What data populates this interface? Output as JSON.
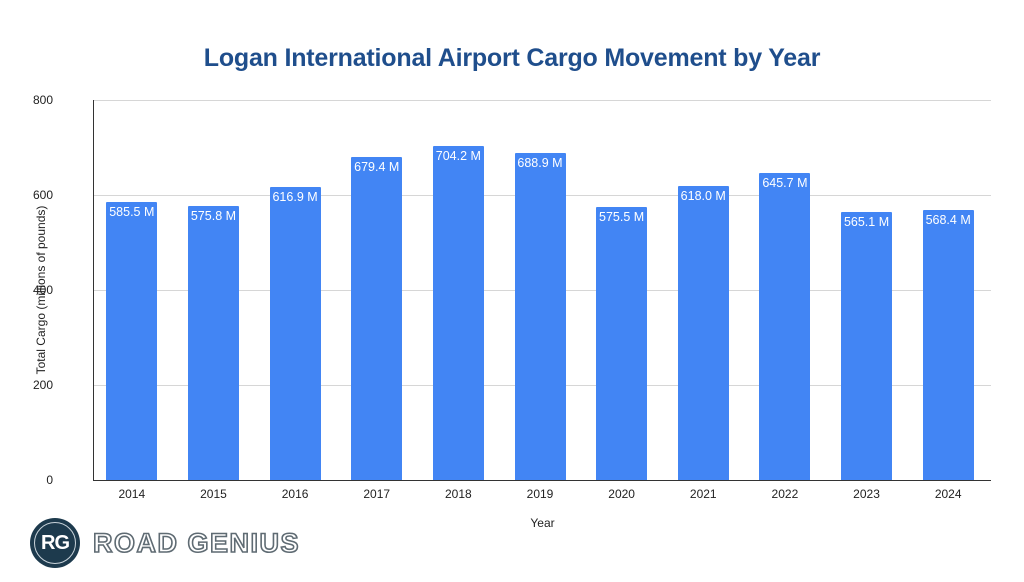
{
  "chart_data": {
    "type": "bar",
    "title": "Logan International Airport Cargo Movement by Year",
    "xlabel": "Year",
    "ylabel": "Total Cargo (millions of pounds)",
    "categories": [
      "2014",
      "2015",
      "2016",
      "2017",
      "2018",
      "2019",
      "2020",
      "2021",
      "2022",
      "2023",
      "2024"
    ],
    "values": [
      585.5,
      575.8,
      616.9,
      679.4,
      704.2,
      688.9,
      575.5,
      618.0,
      645.7,
      565.1,
      568.4
    ],
    "data_labels": [
      "585.5 M",
      "575.8 M",
      "616.9 M",
      "679.4 M",
      "704.2 M",
      "688.9 M",
      "575.5 M",
      "618.0 M",
      "645.7 M",
      "565.1 M",
      "568.4 M"
    ],
    "ylim": [
      0,
      800
    ],
    "yticks": [
      "0",
      "200",
      "400",
      "600",
      "800"
    ],
    "grid": true,
    "legend": null,
    "bar_color": "#4285f4"
  },
  "branding": {
    "logo_badge": "RG",
    "logo_text": "ROAD GENIUS"
  }
}
